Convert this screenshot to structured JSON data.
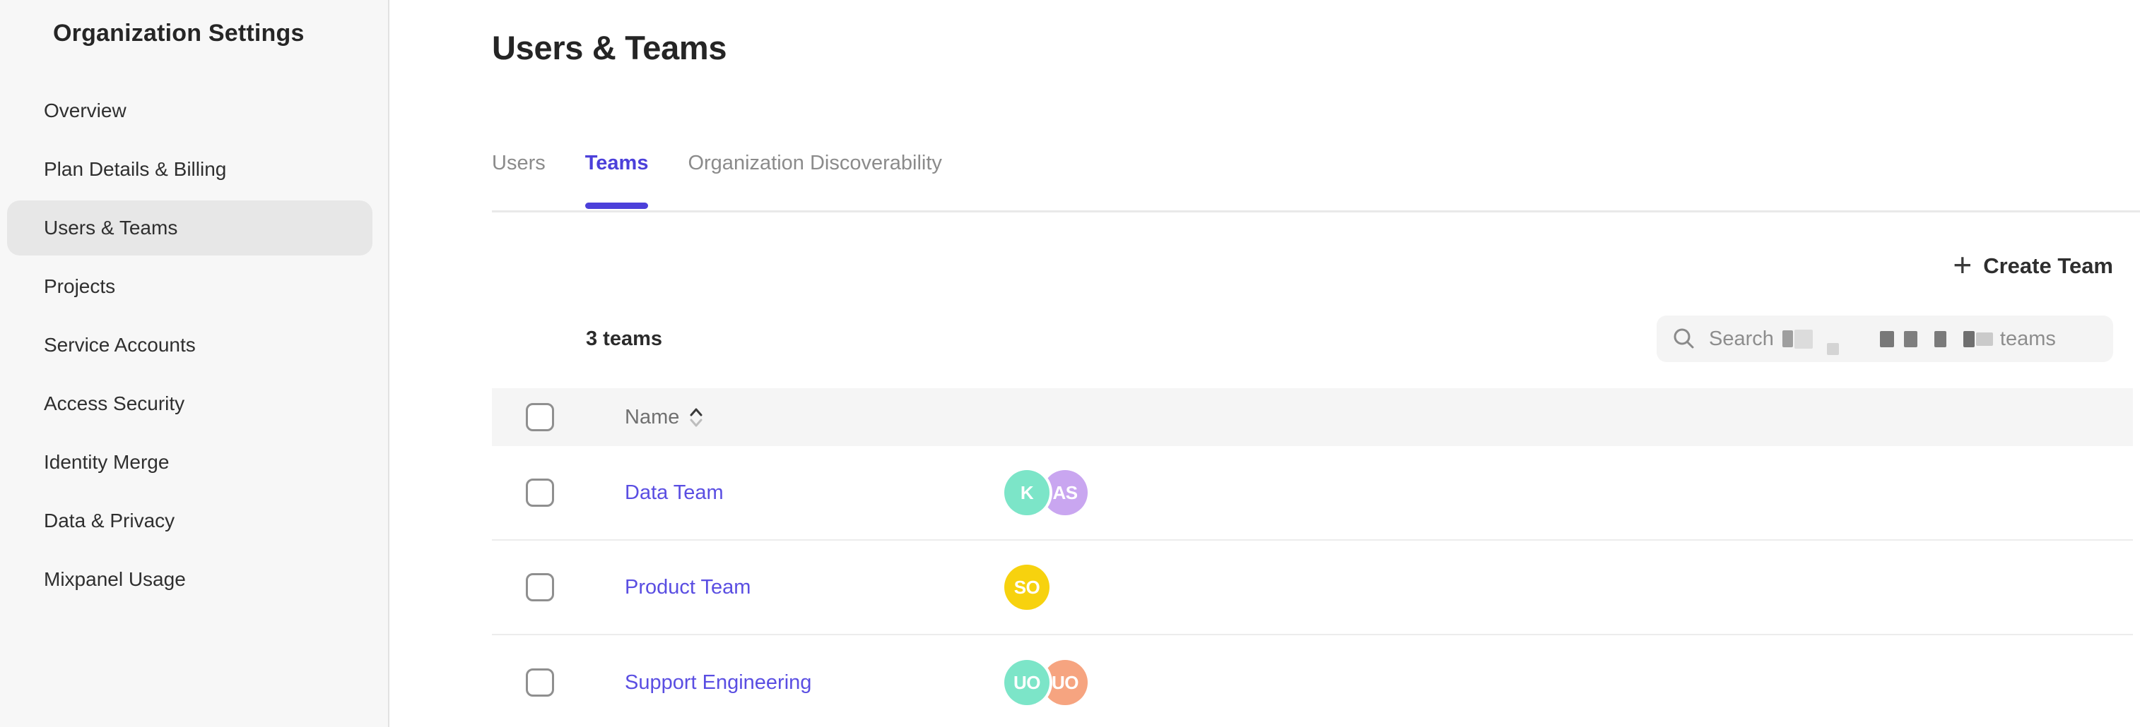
{
  "sidebar": {
    "title": "Organization Settings",
    "items": [
      {
        "label": "Overview",
        "active": false
      },
      {
        "label": "Plan Details & Billing",
        "active": false
      },
      {
        "label": "Users & Teams",
        "active": true
      },
      {
        "label": "Projects",
        "active": false
      },
      {
        "label": "Service Accounts",
        "active": false
      },
      {
        "label": "Access Security",
        "active": false
      },
      {
        "label": "Identity Merge",
        "active": false
      },
      {
        "label": "Data & Privacy",
        "active": false
      },
      {
        "label": "Mixpanel Usage",
        "active": false
      }
    ]
  },
  "main": {
    "title": "Users & Teams",
    "tabs": [
      {
        "label": "Users",
        "active": false
      },
      {
        "label": "Teams",
        "active": true
      },
      {
        "label": "Organization Discoverability",
        "active": false
      }
    ],
    "create_team_label": "Create Team",
    "teams_count": "3 teams",
    "search": {
      "prefix": "Search",
      "suffix": "teams"
    },
    "table": {
      "columns": [
        {
          "label": "Name",
          "sortable": true
        }
      ],
      "rows": [
        {
          "name": "Data Team",
          "avatars": [
            {
              "initials": "K",
              "color": "#7ce5c8"
            },
            {
              "initials": "AS",
              "color": "#c9a6f0"
            }
          ]
        },
        {
          "name": "Product Team",
          "avatars": [
            {
              "initials": "SO",
              "color": "#f7d20e"
            }
          ]
        },
        {
          "name": "Support Engineering",
          "avatars": [
            {
              "initials": "UO",
              "color": "#7ce5c8"
            },
            {
              "initials": "UO",
              "color": "#f6a480"
            }
          ]
        }
      ]
    }
  },
  "colors": {
    "accent_purple": "#4c40da",
    "link_purple": "#5a4ee2",
    "sidebar_bg": "#f7f7f7",
    "sidebar_active_bg": "#e7e7e7",
    "table_header_bg": "#f5f5f5"
  }
}
